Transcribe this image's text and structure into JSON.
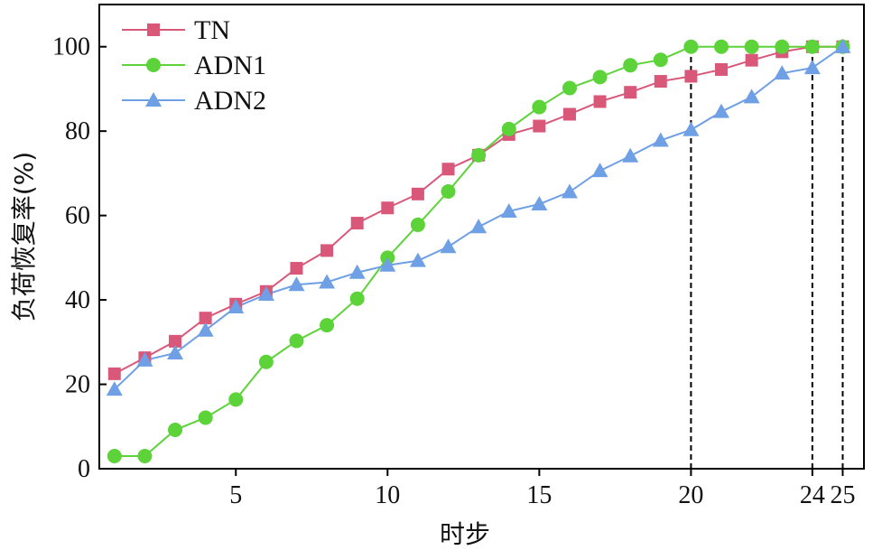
{
  "chart_data": {
    "type": "line",
    "title": "",
    "xlabel": "时步",
    "ylabel": "负荷恢复率(%)",
    "xlim": [
      0.5,
      25.7
    ],
    "ylim": [
      0,
      110
    ],
    "x_ticks": [
      5,
      10,
      15,
      20,
      24,
      25
    ],
    "x_tick_labels": [
      "5",
      "10",
      "15",
      "20",
      "24",
      "25"
    ],
    "y_ticks": [
      0,
      20,
      40,
      60,
      80,
      100
    ],
    "y_tick_labels": [
      "0",
      "20",
      "40",
      "60",
      "80",
      "100"
    ],
    "grid": false,
    "legend_position": "top-left",
    "vertical_markers": [
      20,
      24,
      25
    ],
    "x": [
      1,
      2,
      3,
      4,
      5,
      6,
      7,
      8,
      9,
      10,
      11,
      12,
      13,
      14,
      15,
      16,
      17,
      18,
      19,
      20,
      21,
      22,
      23,
      24,
      25
    ],
    "series": [
      {
        "name": "TN",
        "color": "#d9587a",
        "marker": "square",
        "values": [
          22.5,
          26.3,
          30.2,
          35.7,
          39.0,
          42.0,
          47.5,
          51.7,
          58.2,
          61.8,
          65.1,
          71.0,
          74.3,
          79.2,
          81.2,
          84.0,
          87.0,
          89.2,
          91.8,
          93.0,
          94.6,
          96.8,
          98.8,
          100.0,
          100.0
        ]
      },
      {
        "name": "ADN1",
        "color": "#5dd33a",
        "marker": "circle",
        "values": [
          3.0,
          3.0,
          9.2,
          12.1,
          16.4,
          25.3,
          30.3,
          34.0,
          40.3,
          50.0,
          57.8,
          65.7,
          74.3,
          80.5,
          85.7,
          90.2,
          92.8,
          95.6,
          96.9,
          100.0,
          100.0,
          100.0,
          100.0,
          100.0,
          100.0
        ]
      },
      {
        "name": "ADN2",
        "color": "#6fa0e6",
        "marker": "triangle",
        "values": [
          18.8,
          25.7,
          27.4,
          32.8,
          38.3,
          41.3,
          43.6,
          44.2,
          46.5,
          48.2,
          49.3,
          52.6,
          57.3,
          61.0,
          62.7,
          65.6,
          70.6,
          74.1,
          77.8,
          80.3,
          84.6,
          88.1,
          93.7,
          95.0,
          100.0
        ]
      }
    ]
  }
}
